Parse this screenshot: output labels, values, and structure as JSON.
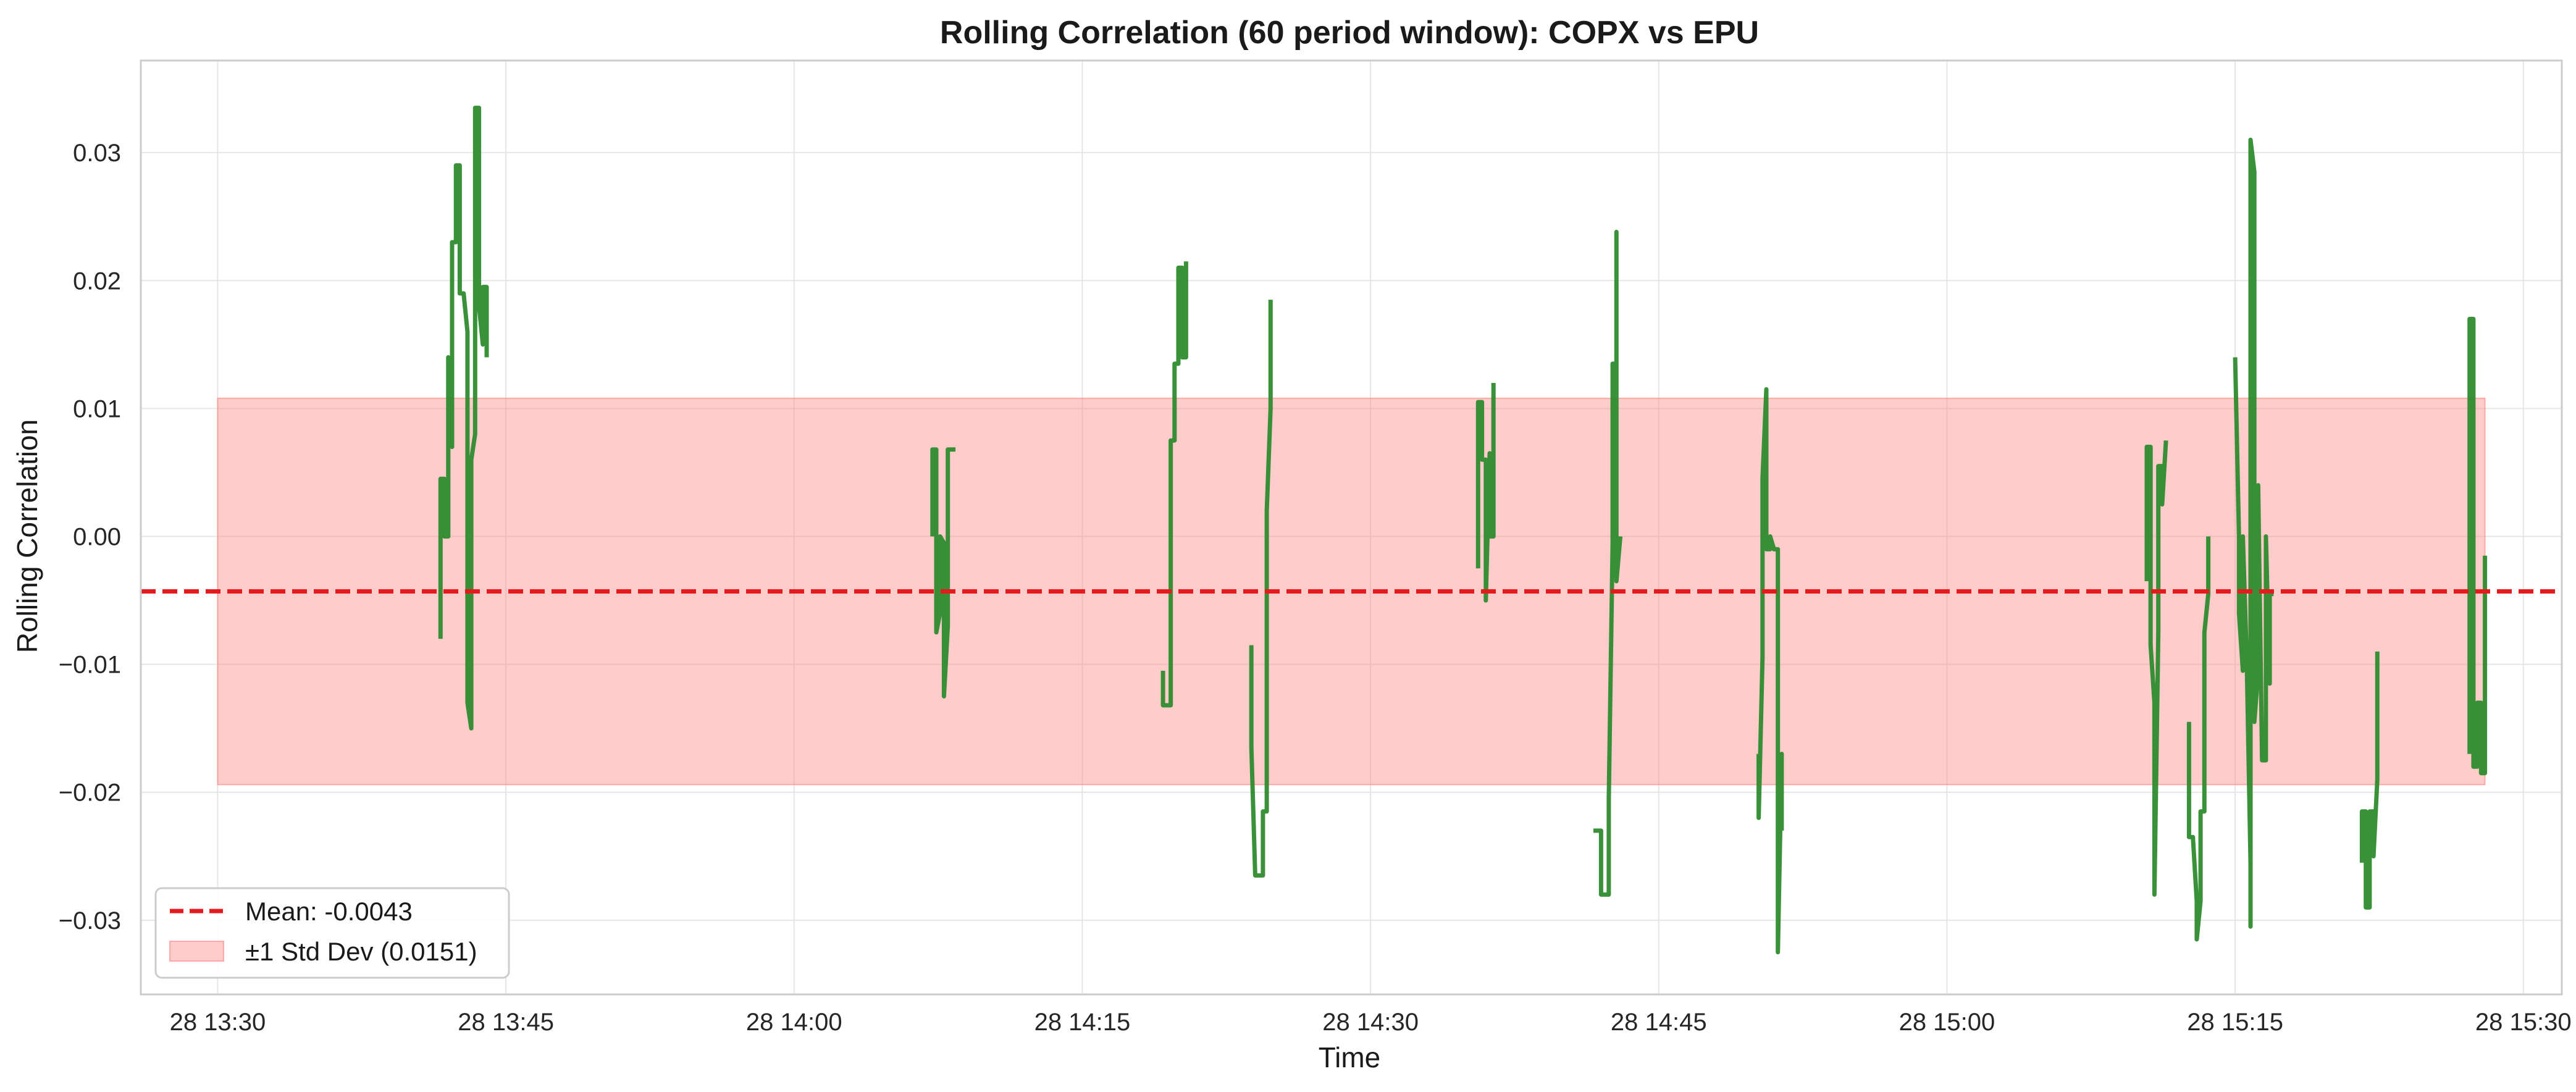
{
  "chart_data": {
    "type": "line",
    "title": "Rolling Correlation (60 period window): COPX vs EPU",
    "xlabel": "Time",
    "ylabel": "Rolling Correlation",
    "xlim": [
      "2024-05-28 13:26:00",
      "2024-05-28 15:32:00"
    ],
    "ylim": [
      -0.0358,
      0.0372
    ],
    "x_ticks": [
      {
        "label": "28 13:30",
        "t": "2024-05-28 13:30:00"
      },
      {
        "label": "28 13:45",
        "t": "2024-05-28 13:45:00"
      },
      {
        "label": "28 14:00",
        "t": "2024-05-28 14:00:00"
      },
      {
        "label": "28 14:15",
        "t": "2024-05-28 14:15:00"
      },
      {
        "label": "28 14:30",
        "t": "2024-05-28 14:30:00"
      },
      {
        "label": "28 14:45",
        "t": "2024-05-28 14:45:00"
      },
      {
        "label": "28 15:00",
        "t": "2024-05-28 15:00:00"
      },
      {
        "label": "28 15:15",
        "t": "2024-05-28 15:15:00"
      },
      {
        "label": "28 15:30",
        "t": "2024-05-28 15:30:00"
      }
    ],
    "y_ticks": [
      {
        "label": "0.03",
        "v": 0.03
      },
      {
        "label": "0.02",
        "v": 0.02
      },
      {
        "label": "0.01",
        "v": 0.01
      },
      {
        "label": "0.00",
        "v": 0.0
      },
      {
        "label": "−0.01",
        "v": -0.01
      },
      {
        "label": "−0.02",
        "v": -0.02
      },
      {
        "label": "−0.03",
        "v": -0.03
      }
    ],
    "grid": true,
    "legend_position": "bottom-left",
    "mean": {
      "value": -0.0043,
      "label": "Mean: -0.0043",
      "color": "#e41a1c"
    },
    "std_band": {
      "low": -0.0194,
      "high": 0.0108,
      "x_start": "2024-05-28 13:30:00",
      "x_end": "2024-05-28 15:28:00",
      "label": "±1 Std Dev (0.0151)",
      "color": "#ff8080"
    },
    "series": [
      {
        "color": "#2e8b2e",
        "segments": [
          [
            [
              "13:41:36",
              -0.008
            ],
            [
              "13:41:36",
              0.0045
            ],
            [
              "13:41:48",
              0.0045
            ],
            [
              "13:41:48",
              0.0
            ],
            [
              "13:42:00",
              0.0
            ],
            [
              "13:42:00",
              0.014
            ],
            [
              "13:42:12",
              0.007
            ],
            [
              "13:42:12",
              0.023
            ],
            [
              "13:42:24",
              0.023
            ],
            [
              "13:42:24",
              0.029
            ],
            [
              "13:42:36",
              0.029
            ],
            [
              "13:42:36",
              0.019
            ],
            [
              "13:42:48",
              0.019
            ],
            [
              "13:43:00",
              0.016
            ],
            [
              "13:43:00",
              -0.013
            ],
            [
              "13:43:12",
              -0.015
            ],
            [
              "13:43:12",
              0.006
            ],
            [
              "13:43:24",
              0.008
            ],
            [
              "13:43:24",
              0.0335
            ],
            [
              "13:43:36",
              0.0335
            ],
            [
              "13:43:36",
              0.018
            ],
            [
              "13:43:48",
              0.015
            ],
            [
              "13:43:48",
              0.0195
            ],
            [
              "13:44:00",
              0.0195
            ],
            [
              "13:44:00",
              0.014
            ]
          ],
          [
            [
              "14:07:12",
              0.0
            ],
            [
              "14:07:12",
              0.0068
            ],
            [
              "14:07:24",
              0.0068
            ],
            [
              "14:07:24",
              -0.0075
            ],
            [
              "14:07:36",
              -0.006
            ],
            [
              "14:07:36",
              0.0
            ],
            [
              "14:07:48",
              -0.0005
            ],
            [
              "14:07:48",
              -0.0125
            ],
            [
              "14:08:00",
              -0.007
            ],
            [
              "14:08:00",
              0.0068
            ],
            [
              "14:08:24",
              0.0068
            ]
          ],
          [
            [
              "14:19:12",
              -0.0105
            ],
            [
              "14:19:12",
              -0.0132
            ],
            [
              "14:19:36",
              -0.0132
            ],
            [
              "14:19:36",
              0.0075
            ],
            [
              "14:19:48",
              0.0075
            ],
            [
              "14:19:48",
              0.0135
            ],
            [
              "14:20:00",
              0.0135
            ],
            [
              "14:20:00",
              0.021
            ],
            [
              "14:20:12",
              0.021
            ],
            [
              "14:20:12",
              0.014
            ],
            [
              "14:20:24",
              0.014
            ],
            [
              "14:20:24",
              0.0215
            ]
          ],
          [
            [
              "14:23:48",
              -0.0085
            ],
            [
              "14:23:48",
              -0.0165
            ],
            [
              "14:24:00",
              -0.0265
            ],
            [
              "14:24:24",
              -0.0265
            ],
            [
              "14:24:24",
              -0.0215
            ],
            [
              "14:24:36",
              -0.0215
            ],
            [
              "14:24:36",
              0.002
            ],
            [
              "14:24:48",
              0.01
            ],
            [
              "14:24:48",
              0.0185
            ]
          ],
          [
            [
              "14:35:36",
              -0.0025
            ],
            [
              "14:35:36",
              0.0105
            ],
            [
              "14:35:48",
              0.0105
            ],
            [
              "14:35:48",
              0.006
            ],
            [
              "14:36:00",
              0.006
            ],
            [
              "14:36:00",
              -0.005
            ],
            [
              "14:36:12",
              0.0065
            ],
            [
              "14:36:12",
              0.0
            ],
            [
              "14:36:24",
              0.0
            ],
            [
              "14:36:24",
              0.012
            ]
          ],
          [
            [
              "14:41:36",
              -0.023
            ],
            [
              "14:42:00",
              -0.023
            ],
            [
              "14:42:00",
              -0.028
            ],
            [
              "14:42:24",
              -0.028
            ],
            [
              "14:42:24",
              -0.0205
            ],
            [
              "14:42:36",
              -0.0005
            ],
            [
              "14:42:36",
              0.0135
            ],
            [
              "14:42:48",
              0.0135
            ],
            [
              "14:42:48",
              0.0238
            ],
            [
              "14:42:48",
              -0.0035
            ],
            [
              "14:43:00",
              0.0
            ]
          ],
          [
            [
              "14:50:12",
              -0.017
            ],
            [
              "14:50:12",
              -0.022
            ],
            [
              "14:50:24",
              -0.0095
            ],
            [
              "14:50:24",
              0.0045
            ],
            [
              "14:50:36",
              0.0115
            ],
            [
              "14:50:36",
              -0.001
            ],
            [
              "14:50:48",
              -0.001
            ],
            [
              "14:50:48",
              0.0
            ],
            [
              "14:51:00",
              -0.001
            ],
            [
              "14:51:12",
              -0.001
            ],
            [
              "14:51:12",
              -0.0325
            ],
            [
              "14:51:24",
              -0.017
            ],
            [
              "14:51:24",
              -0.023
            ]
          ],
          [
            [
              "15:10:24",
              -0.0035
            ],
            [
              "15:10:24",
              0.007
            ],
            [
              "15:10:36",
              0.007
            ],
            [
              "15:10:36",
              -0.0085
            ],
            [
              "15:10:48",
              -0.013
            ],
            [
              "15:10:48",
              -0.028
            ],
            [
              "15:11:00",
              -0.0075
            ],
            [
              "15:11:00",
              0.0055
            ],
            [
              "15:11:12",
              0.0055
            ],
            [
              "15:11:12",
              0.0025
            ],
            [
              "15:11:24",
              0.0075
            ]
          ],
          [
            [
              "15:12:36",
              -0.0145
            ],
            [
              "15:12:36",
              -0.0235
            ],
            [
              "15:12:48",
              -0.0235
            ],
            [
              "15:13:00",
              -0.0285
            ],
            [
              "15:13:00",
              -0.0315
            ],
            [
              "15:13:12",
              -0.0285
            ],
            [
              "15:13:12",
              -0.0215
            ],
            [
              "15:13:24",
              -0.0215
            ],
            [
              "15:13:24",
              -0.0075
            ],
            [
              "15:13:36",
              -0.0045
            ],
            [
              "15:13:36",
              0.0
            ]
          ],
          [
            [
              "15:15:00",
              0.014
            ],
            [
              "15:15:12",
              0.0
            ],
            [
              "15:15:12",
              -0.006
            ],
            [
              "15:15:24",
              -0.0105
            ],
            [
              "15:15:24",
              0.0
            ],
            [
              "15:15:36",
              -0.0095
            ],
            [
              "15:15:48",
              -0.0255
            ],
            [
              "15:15:48",
              -0.0305
            ],
            [
              "15:15:48",
              0.031
            ],
            [
              "15:16:00",
              0.0285
            ],
            [
              "15:16:00",
              -0.0145
            ],
            [
              "15:16:12",
              -0.0105
            ],
            [
              "15:16:12",
              0.004
            ],
            [
              "15:16:24",
              -0.0175
            ],
            [
              "15:16:36",
              -0.0175
            ],
            [
              "15:16:36",
              0.0
            ],
            [
              "15:16:48",
              -0.0115
            ],
            [
              "15:16:48",
              -0.0045
            ],
            [
              "15:17:00",
              -0.0045
            ]
          ],
          [
            [
              "15:21:36",
              -0.0255
            ],
            [
              "15:21:36",
              -0.0215
            ],
            [
              "15:21:48",
              -0.0215
            ],
            [
              "15:21:48",
              -0.029
            ],
            [
              "15:22:00",
              -0.029
            ],
            [
              "15:22:00",
              -0.0215
            ],
            [
              "15:22:12",
              -0.0215
            ],
            [
              "15:22:12",
              -0.025
            ],
            [
              "15:22:24",
              -0.019
            ],
            [
              "15:22:24",
              -0.009
            ]
          ],
          [
            [
              "15:27:12",
              -0.017
            ],
            [
              "15:27:12",
              0.017
            ],
            [
              "15:27:24",
              0.017
            ],
            [
              "15:27:24",
              -0.018
            ],
            [
              "15:27:36",
              -0.018
            ],
            [
              "15:27:36",
              -0.013
            ],
            [
              "15:27:48",
              -0.013
            ],
            [
              "15:27:48",
              -0.0185
            ],
            [
              "15:28:00",
              -0.0185
            ],
            [
              "15:28:00",
              -0.0015
            ]
          ]
        ]
      }
    ]
  }
}
